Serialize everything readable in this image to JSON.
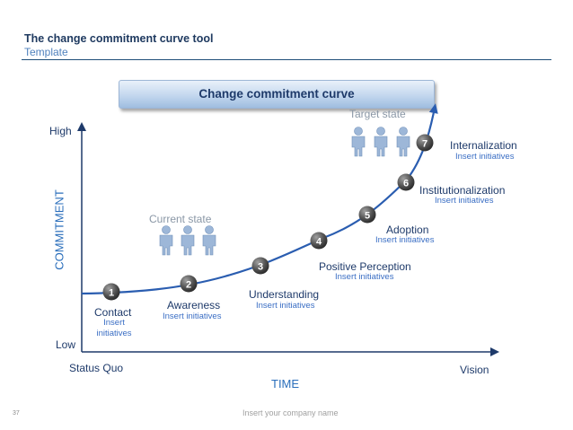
{
  "header": {
    "title": "The change commitment curve tool",
    "subtitle": "Template"
  },
  "banner": {
    "label": "Change commitment curve"
  },
  "axes": {
    "y_label": "COMMITMENT",
    "y_high": "High",
    "y_low": "Low",
    "x_label": "TIME",
    "x_start": "Status Quo",
    "x_end": "Vision"
  },
  "states": {
    "current": "Current state",
    "target": "Target state"
  },
  "stages": [
    {
      "num": "1",
      "name": "Contact",
      "sub": "Insert\ninitiatives"
    },
    {
      "num": "2",
      "name": "Awareness",
      "sub": "Insert initiatives"
    },
    {
      "num": "3",
      "name": "Understanding",
      "sub": "Insert initiatives"
    },
    {
      "num": "4",
      "name": "Positive Perception",
      "sub": "Insert initiatives"
    },
    {
      "num": "5",
      "name": "Adoption",
      "sub": "Insert initiatives"
    },
    {
      "num": "6",
      "name": "Institutionalization",
      "sub": "Insert initiatives"
    },
    {
      "num": "7",
      "name": "Internalization",
      "sub": "Insert initiatives"
    }
  ],
  "footer": {
    "page": "37",
    "company": "Insert your company name"
  },
  "colors": {
    "curve": "#2a5db0",
    "axis": "#1e3a6a",
    "badge": "#555555",
    "people": "#9db7d8"
  }
}
